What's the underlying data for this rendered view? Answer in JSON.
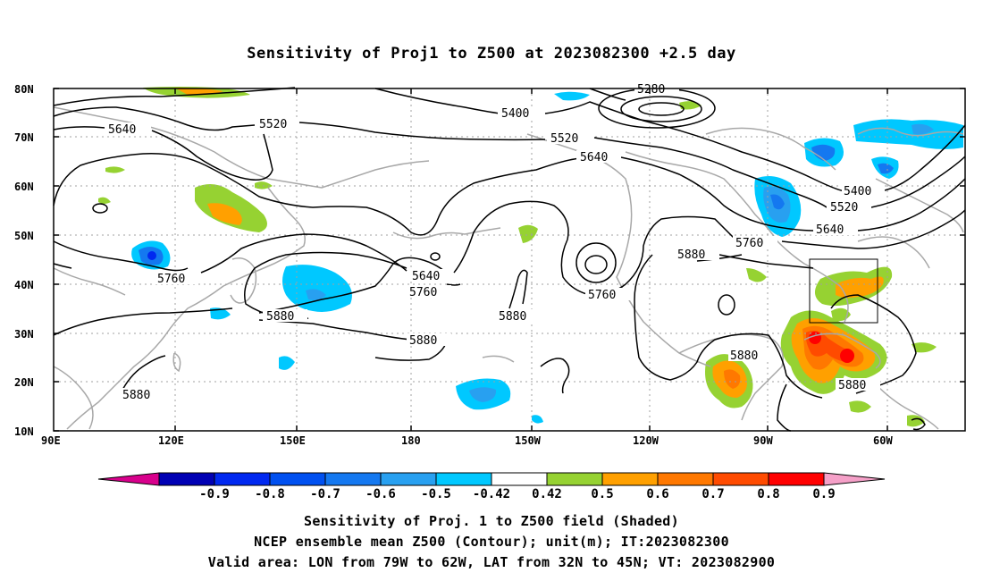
{
  "title": "Sensitivity of Proj1 to Z500 at 2023082300 +2.5 day",
  "lat_labels": [
    "80N",
    "70N",
    "60N",
    "50N",
    "40N",
    "30N",
    "20N",
    "10N"
  ],
  "lon_labels": [
    "90E",
    "120E",
    "150E",
    "180",
    "150W",
    "120W",
    "90W",
    "60W"
  ],
  "contour_labels": [
    "5280",
    "5400",
    "5520",
    "5640",
    "5760",
    "5880"
  ],
  "colorbar": {
    "ticks": [
      "-0.9",
      "-0.8",
      "-0.7",
      "-0.6",
      "-0.5",
      "-0.42",
      "0.42",
      "0.5",
      "0.6",
      "0.7",
      "0.8",
      "0.9"
    ],
    "colors": [
      "#d8008c",
      "#0000b4",
      "#0028f0",
      "#0050f0",
      "#1478f0",
      "#28a0f0",
      "#00c8ff",
      "#ffffff",
      "#96d232",
      "#ffa000",
      "#ff7800",
      "#ff4b00",
      "#ff0000",
      "#f5a0c8"
    ]
  },
  "captions": {
    "line1": "Sensitivity of Proj. 1 to Z500 field (Shaded)",
    "line2": "NCEP ensemble mean Z500 (Contour); unit(m); IT:2023082300",
    "line3": "Valid area: LON from 79W to 62W, LAT from 32N to 45N; VT: 2023082900"
  },
  "colors": {
    "coast": "#a8a8a8",
    "contour": "#000000",
    "grid": "#a0a0a0"
  }
}
